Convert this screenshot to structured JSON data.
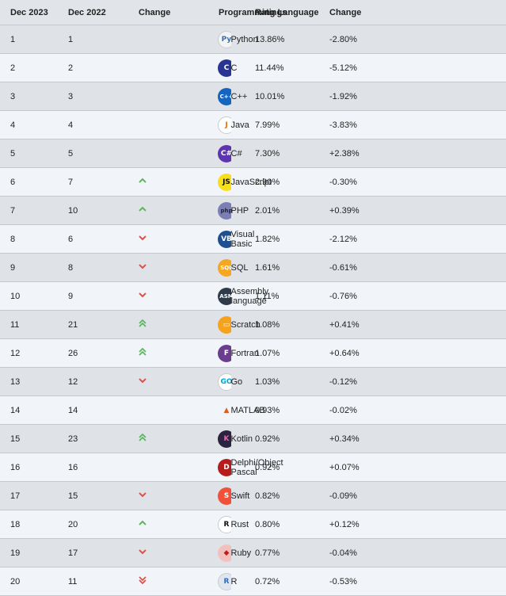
{
  "header": {
    "col_dec2023": "Dec 2023",
    "col_dec2022": "Dec 2022",
    "col_change": "Change",
    "col_language": "Programming Language",
    "col_ratings": "Ratings",
    "col_change_pct": "Change"
  },
  "rows": [
    {
      "rank_2023": "1",
      "rank_2022": "1",
      "trend": "none",
      "language": "Python",
      "icon": "python-icon",
      "rating": "13.86%",
      "change": "-2.80%"
    },
    {
      "rank_2023": "2",
      "rank_2022": "2",
      "trend": "none",
      "language": "C",
      "icon": "c-icon",
      "rating": "11.44%",
      "change": "-5.12%"
    },
    {
      "rank_2023": "3",
      "rank_2022": "3",
      "trend": "none",
      "language": "C++",
      "icon": "cpp-icon",
      "rating": "10.01%",
      "change": "-1.92%"
    },
    {
      "rank_2023": "4",
      "rank_2022": "4",
      "trend": "none",
      "language": "Java",
      "icon": "java-icon",
      "rating": "7.99%",
      "change": "-3.83%"
    },
    {
      "rank_2023": "5",
      "rank_2022": "5",
      "trend": "none",
      "language": "C#",
      "icon": "csharp-icon",
      "rating": "7.30%",
      "change": "+2.38%"
    },
    {
      "rank_2023": "6",
      "rank_2022": "7",
      "trend": "up",
      "language": "JavaScript",
      "icon": "javascript-icon",
      "rating": "2.90%",
      "change": "-0.30%"
    },
    {
      "rank_2023": "7",
      "rank_2022": "10",
      "trend": "up",
      "language": "PHP",
      "icon": "php-icon",
      "rating": "2.01%",
      "change": "+0.39%"
    },
    {
      "rank_2023": "8",
      "rank_2022": "6",
      "trend": "down",
      "language": "Visual Basic",
      "icon": "visual-basic-icon",
      "rating": "1.82%",
      "change": "-2.12%"
    },
    {
      "rank_2023": "9",
      "rank_2022": "8",
      "trend": "down",
      "language": "SQL",
      "icon": "sql-icon",
      "rating": "1.61%",
      "change": "-0.61%"
    },
    {
      "rank_2023": "10",
      "rank_2022": "9",
      "trend": "down",
      "language": "Assembly language",
      "icon": "assembly-icon",
      "rating": "1.11%",
      "change": "-0.76%"
    },
    {
      "rank_2023": "11",
      "rank_2022": "21",
      "trend": "up2",
      "language": "Scratch",
      "icon": "scratch-icon",
      "rating": "1.08%",
      "change": "+0.41%"
    },
    {
      "rank_2023": "12",
      "rank_2022": "26",
      "trend": "up2",
      "language": "Fortran",
      "icon": "fortran-icon",
      "rating": "1.07%",
      "change": "+0.64%"
    },
    {
      "rank_2023": "13",
      "rank_2022": "12",
      "trend": "down",
      "language": "Go",
      "icon": "go-icon",
      "rating": "1.03%",
      "change": "-0.12%"
    },
    {
      "rank_2023": "14",
      "rank_2022": "14",
      "trend": "none",
      "language": "MATLAB",
      "icon": "matlab-icon",
      "rating": "0.93%",
      "change": "-0.02%"
    },
    {
      "rank_2023": "15",
      "rank_2022": "23",
      "trend": "up2",
      "language": "Kotlin",
      "icon": "kotlin-icon",
      "rating": "0.92%",
      "change": "+0.34%"
    },
    {
      "rank_2023": "16",
      "rank_2022": "16",
      "trend": "none",
      "language": "Delphi/Object Pascal",
      "icon": "delphi-icon",
      "rating": "0.92%",
      "change": "+0.07%"
    },
    {
      "rank_2023": "17",
      "rank_2022": "15",
      "trend": "down",
      "language": "Swift",
      "icon": "swift-icon",
      "rating": "0.82%",
      "change": "-0.09%"
    },
    {
      "rank_2023": "18",
      "rank_2022": "20",
      "trend": "up",
      "language": "Rust",
      "icon": "rust-icon",
      "rating": "0.80%",
      "change": "+0.12%"
    },
    {
      "rank_2023": "19",
      "rank_2022": "17",
      "trend": "down",
      "language": "Ruby",
      "icon": "ruby-icon",
      "rating": "0.77%",
      "change": "-0.04%"
    },
    {
      "rank_2023": "20",
      "rank_2022": "11",
      "trend": "down2",
      "language": "R",
      "icon": "r-icon",
      "rating": "0.72%",
      "change": "-0.53%"
    }
  ],
  "colors": {
    "up": "#5cb85c",
    "down": "#d9534f",
    "header_bg": "#e1e5ea",
    "row_odd": "#dfe3e8",
    "row_even": "#f1f5f9"
  },
  "icon_styles": {
    "python-icon": {
      "bg": "#f1f3f5",
      "fg": "#3a6fa8",
      "text": "Py"
    },
    "c-icon": {
      "bg": "#283593",
      "fg": "#ffffff",
      "text": "C"
    },
    "cpp-icon": {
      "bg": "#1565c0",
      "fg": "#ffffff",
      "text": "C++"
    },
    "java-icon": {
      "bg": "#ffffff",
      "fg": "#e76f00",
      "text": "J"
    },
    "csharp-icon": {
      "bg": "#5e35b1",
      "fg": "#ffffff",
      "text": "C#"
    },
    "javascript-icon": {
      "bg": "#f7df1e",
      "fg": "#111111",
      "text": "JS"
    },
    "php-icon": {
      "bg": "#7b7fb5",
      "fg": "#22263a",
      "text": "php"
    },
    "visual-basic-icon": {
      "bg": "#1f4f8f",
      "fg": "#ffffff",
      "text": "VB"
    },
    "sql-icon": {
      "bg": "#f5a623",
      "fg": "#ffffff",
      "text": "SQL"
    },
    "assembly-icon": {
      "bg": "#2f3b4a",
      "fg": "#ffffff",
      "text": "ASM"
    },
    "scratch-icon": {
      "bg": "#f7a21b",
      "fg": "#ffffff",
      "text": "▭"
    },
    "fortran-icon": {
      "bg": "#6a3d8e",
      "fg": "#ffffff",
      "text": "F"
    },
    "go-icon": {
      "bg": "#ffffff",
      "fg": "#00a7d0",
      "text": "GO"
    },
    "matlab-icon": {
      "bg": "transparent",
      "fg": "#d95f1f",
      "text": "▲"
    },
    "kotlin-icon": {
      "bg": "#2b2340",
      "fg": "#e66aa8",
      "text": "K"
    },
    "delphi-icon": {
      "bg": "#b71c1c",
      "fg": "#ffffff",
      "text": "D"
    },
    "swift-icon": {
      "bg": "#f05138",
      "fg": "#ffffff",
      "text": "S"
    },
    "rust-icon": {
      "bg": "#ffffff",
      "fg": "#111111",
      "text": "R"
    },
    "ruby-icon": {
      "bg": "#f3c1bd",
      "fg": "#c21b1b",
      "text": "◆"
    },
    "r-icon": {
      "bg": "#dfe6f0",
      "fg": "#276dc3",
      "text": "R"
    }
  }
}
